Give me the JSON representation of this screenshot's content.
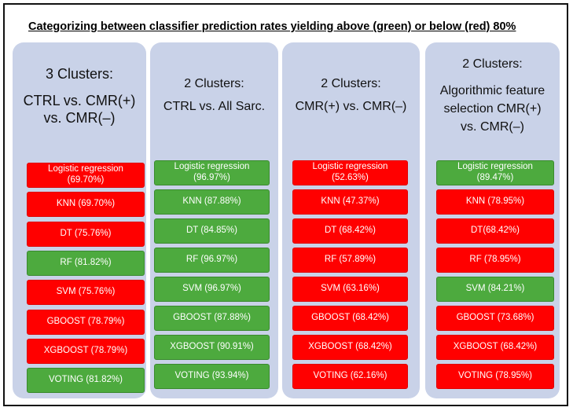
{
  "title": "Categorizing between classifier prediction rates yielding above (green) or below (red) 80%",
  "colors": {
    "above": "#4daa3e",
    "below": "#ff0000",
    "panel": "#c9d2e8"
  },
  "panels": [
    {
      "heading_line1": "3 Clusters:",
      "heading_line2": "CTRL vs. CMR(+)",
      "heading_line3": "vs. CMR(–)",
      "results": [
        {
          "label": "Logistic regression\n(69.70%)",
          "status": "below"
        },
        {
          "label": "KNN (69.70%)",
          "status": "below"
        },
        {
          "label": "DT (75.76%)",
          "status": "below"
        },
        {
          "label": "RF (81.82%)",
          "status": "above"
        },
        {
          "label": "SVM (75.76%)",
          "status": "below"
        },
        {
          "label": "GBOOST (78.79%)",
          "status": "below"
        },
        {
          "label": "XGBOOST (78.79%)",
          "status": "below"
        },
        {
          "label": "VOTING (81.82%)",
          "status": "above"
        }
      ]
    },
    {
      "heading_line1": "2 Clusters:",
      "heading_line2": "CTRL vs. All Sarc.",
      "heading_line3": "",
      "results": [
        {
          "label": "Logistic regression\n(96.97%)",
          "status": "above"
        },
        {
          "label": "KNN (87.88%)",
          "status": "above"
        },
        {
          "label": "DT (84.85%)",
          "status": "above"
        },
        {
          "label": "RF (96.97%)",
          "status": "above"
        },
        {
          "label": "SVM (96.97%)",
          "status": "above"
        },
        {
          "label": "GBOOST (87.88%)",
          "status": "above"
        },
        {
          "label": "XGBOOST (90.91%)",
          "status": "above"
        },
        {
          "label": "VOTING (93.94%)",
          "status": "above"
        }
      ]
    },
    {
      "heading_line1": "2 Clusters:",
      "heading_line2": "CMR(+) vs. CMR(–)",
      "heading_line3": "",
      "results": [
        {
          "label": "Logistic regression\n(52.63%)",
          "status": "below"
        },
        {
          "label": "KNN (47.37%)",
          "status": "below"
        },
        {
          "label": "DT (68.42%)",
          "status": "below"
        },
        {
          "label": "RF (57.89%)",
          "status": "below"
        },
        {
          "label": "SVM (63.16%)",
          "status": "below"
        },
        {
          "label": "GBOOST (68.42%)",
          "status": "below"
        },
        {
          "label": "XGBOOST (68.42%)",
          "status": "below"
        },
        {
          "label": "VOTING (62.16%)",
          "status": "below"
        }
      ]
    },
    {
      "heading_line1": "2 Clusters:",
      "heading_line2": "Algorithmic feature",
      "heading_line3": "selection CMR(+)",
      "heading_line4": "vs. CMR(–)",
      "results": [
        {
          "label": "Logistic regression\n(89.47%)",
          "status": "above"
        },
        {
          "label": "KNN (78.95%)",
          "status": "below"
        },
        {
          "label": "DT(68.42%)",
          "status": "below"
        },
        {
          "label": "RF (78.95%)",
          "status": "below"
        },
        {
          "label": "SVM (84.21%)",
          "status": "above"
        },
        {
          "label": "GBOOST (73.68%)",
          "status": "below"
        },
        {
          "label": "XGBOOST (68.42%)",
          "status": "below"
        },
        {
          "label": "VOTING (78.95%)",
          "status": "below"
        }
      ]
    }
  ]
}
